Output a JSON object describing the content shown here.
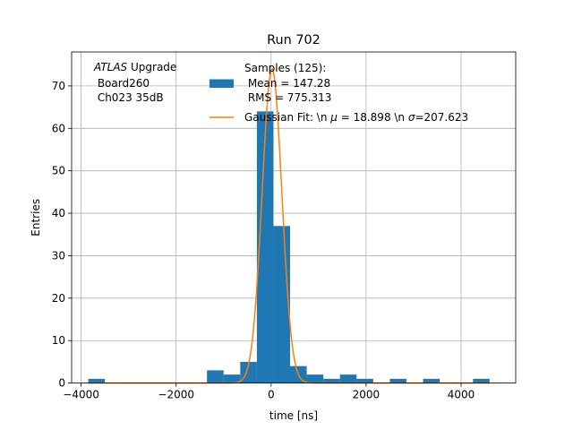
{
  "chart_data": {
    "type": "bar",
    "title": "Run 702",
    "xlabel": "time [ns]",
    "ylabel": "Entries",
    "xlim": [
      -4200,
      5150
    ],
    "ylim": [
      0,
      78
    ],
    "grid": true,
    "x_ticks": [
      -4000,
      -2000,
      0,
      2000,
      4000
    ],
    "x_tick_labels": [
      "−4000",
      "−2000",
      "0",
      "2000",
      "4000"
    ],
    "y_ticks": [
      0,
      10,
      20,
      30,
      40,
      50,
      60,
      70
    ],
    "y_tick_labels": [
      "0",
      "10",
      "20",
      "30",
      "40",
      "50",
      "60",
      "70"
    ],
    "annotation": {
      "italic": "ATLAS",
      "line1_rest": " Upgrade",
      "line2": " Board260",
      "line3": " Ch023 35dB"
    },
    "legend": {
      "placement": "top-center",
      "histogram_label_lines": [
        "Samples (125):",
        " Mean = 147.28",
        " RMS = 775.313"
      ],
      "fit_label_prefix": "Gaussian Fit: \\n ",
      "fit_label_mu_symbol": "μ",
      "fit_label_mu_value": " = 18.898 \\n ",
      "fit_label_sigma_symbol": "σ",
      "fit_label_sigma_value": "=207.623"
    },
    "histogram": {
      "color": "#1f77b4",
      "bins": [
        {
          "x0": -3850,
          "x1": -3500,
          "count": 1
        },
        {
          "x0": -1350,
          "x1": -1000,
          "count": 3
        },
        {
          "x0": -1000,
          "x1": -650,
          "count": 2
        },
        {
          "x0": -650,
          "x1": -300,
          "count": 5
        },
        {
          "x0": -300,
          "x1": 50,
          "count": 64
        },
        {
          "x0": 50,
          "x1": 400,
          "count": 37
        },
        {
          "x0": 400,
          "x1": 750,
          "count": 4
        },
        {
          "x0": 750,
          "x1": 1100,
          "count": 2
        },
        {
          "x0": 1100,
          "x1": 1450,
          "count": 1
        },
        {
          "x0": 1450,
          "x1": 1800,
          "count": 2
        },
        {
          "x0": 1800,
          "x1": 2150,
          "count": 1
        },
        {
          "x0": 2500,
          "x1": 2850,
          "count": 1
        },
        {
          "x0": 3200,
          "x1": 3550,
          "count": 1
        },
        {
          "x0": 4250,
          "x1": 4600,
          "count": 1
        }
      ]
    },
    "fit": {
      "color": "#ff7f0e",
      "amplitude": 74.0,
      "mu": 18.898,
      "sigma": 207.623,
      "x_range": [
        -3850,
        4600
      ]
    }
  }
}
